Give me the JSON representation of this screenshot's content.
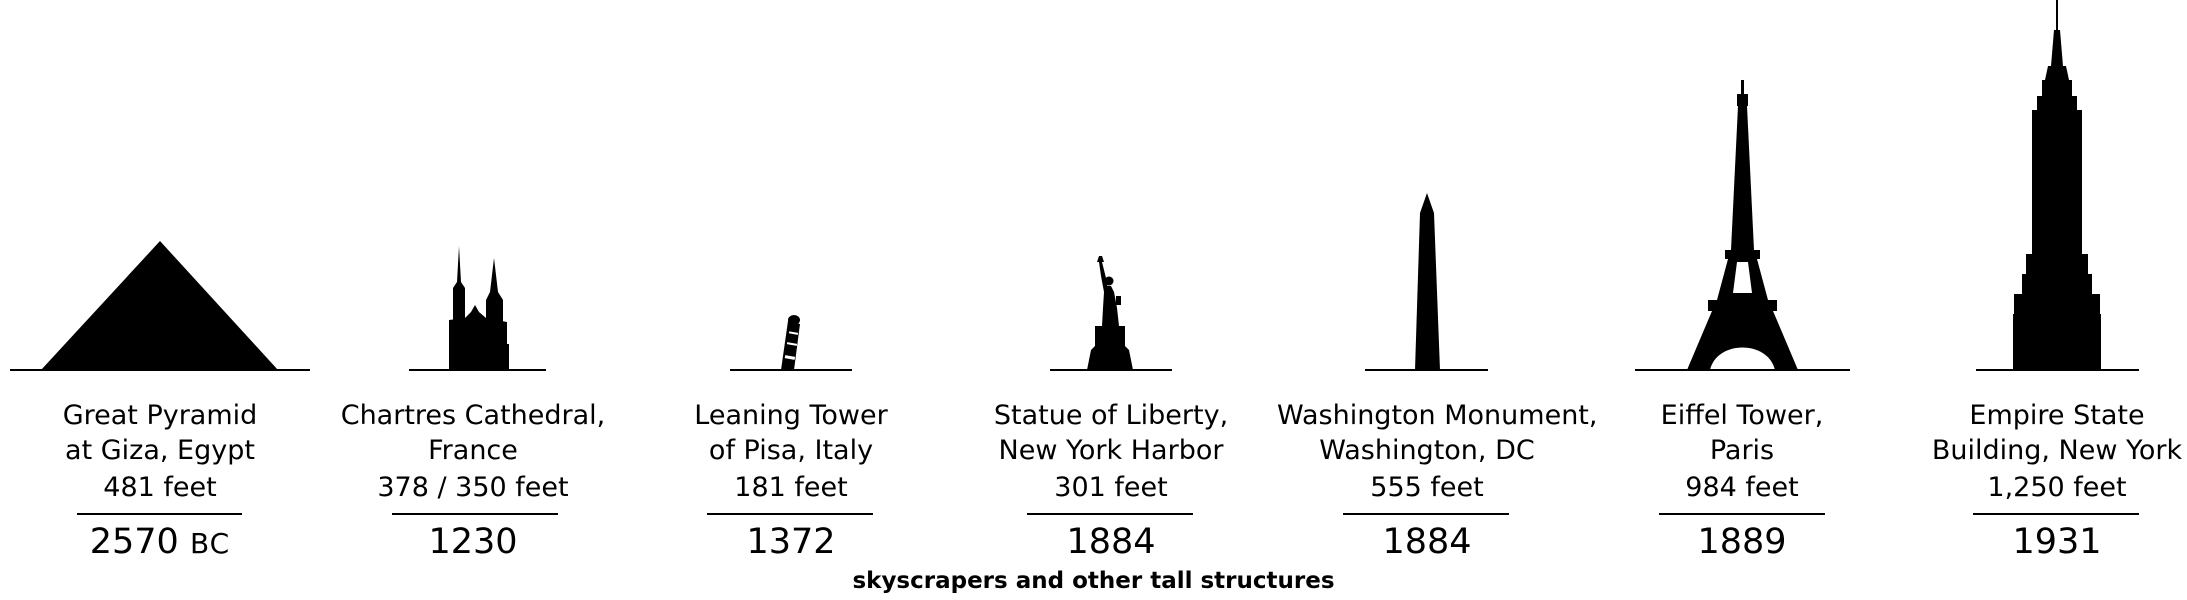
{
  "caption": "skyscrapers and other tall structures",
  "structures": [
    {
      "name_lines": [
        "Great Pyramid",
        "at Giza, Egypt"
      ],
      "height": "481 feet",
      "year": "2570",
      "era": "BC",
      "icon": "pyramid-icon"
    },
    {
      "name_lines": [
        "Chartres Cathedral,",
        "France"
      ],
      "height": "378 / 350 feet",
      "year": "1230",
      "era": "",
      "icon": "cathedral-icon"
    },
    {
      "name_lines": [
        "Leaning Tower",
        "of Pisa, Italy"
      ],
      "height": "181 feet",
      "year": "1372",
      "era": "",
      "icon": "leaning-tower-icon"
    },
    {
      "name_lines": [
        "Statue of Liberty,",
        "New York Harbor"
      ],
      "height": "301 feet",
      "year": "1884",
      "era": "",
      "icon": "statue-of-liberty-icon"
    },
    {
      "name_lines": [
        "Washington Monument,",
        "Washington, DC"
      ],
      "height": "555 feet",
      "year": "1884",
      "era": "",
      "icon": "obelisk-icon"
    },
    {
      "name_lines": [
        "Eiffel Tower,",
        "Paris"
      ],
      "height": "984 feet",
      "year": "1889",
      "era": "",
      "icon": "eiffel-tower-icon"
    },
    {
      "name_lines": [
        "Empire State",
        "Building, New York"
      ],
      "height": "1,250 feet",
      "year": "1931",
      "era": "",
      "icon": "empire-state-building-icon"
    }
  ]
}
